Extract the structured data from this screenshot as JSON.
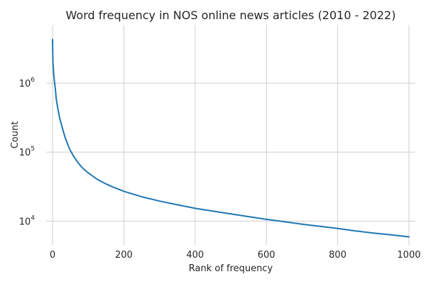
{
  "chart_data": {
    "type": "line",
    "title": "Word frequency in NOS online news articles (2010 - 2022)",
    "xlabel": "Rank of frequency",
    "ylabel": "Count",
    "xlim": [
      -18,
      1018
    ],
    "ylim": [
      4500,
      7000000
    ],
    "y_scale": "log",
    "grid": true,
    "x_ticks": [
      {
        "value": 0,
        "label": "0"
      },
      {
        "value": 200,
        "label": "200"
      },
      {
        "value": 400,
        "label": "400"
      },
      {
        "value": 600,
        "label": "600"
      },
      {
        "value": 800,
        "label": "800"
      },
      {
        "value": 1000,
        "label": "1000"
      }
    ],
    "y_ticks": [
      {
        "value": 10000,
        "base": "10",
        "exponent": "4"
      },
      {
        "value": 100000,
        "base": "10",
        "exponent": "5"
      },
      {
        "value": 1000000,
        "base": "10",
        "exponent": "6"
      }
    ],
    "series": [
      {
        "color": "#1f77b4",
        "x": [
          0,
          1,
          2,
          3,
          5,
          8,
          10,
          15,
          20,
          25,
          30,
          35,
          40,
          45,
          50,
          55,
          60,
          70,
          80,
          90,
          100,
          110,
          120,
          130,
          150,
          170,
          200,
          250,
          300,
          350,
          400,
          450,
          500,
          550,
          600,
          650,
          700,
          750,
          800,
          850,
          900,
          950,
          1000
        ],
        "y": [
          4300000,
          2100000,
          1700000,
          1400000,
          1100000,
          800000,
          600000,
          420000,
          310000,
          250000,
          200000,
          165000,
          140000,
          120000,
          105000,
          95000,
          85000,
          72000,
          62000,
          55000,
          50000,
          46000,
          42000,
          39000,
          34500,
          31000,
          27000,
          22500,
          19500,
          17200,
          15300,
          13900,
          12700,
          11600,
          10600,
          9800,
          9000,
          8400,
          7800,
          7200,
          6700,
          6300,
          5900
        ]
      }
    ]
  }
}
